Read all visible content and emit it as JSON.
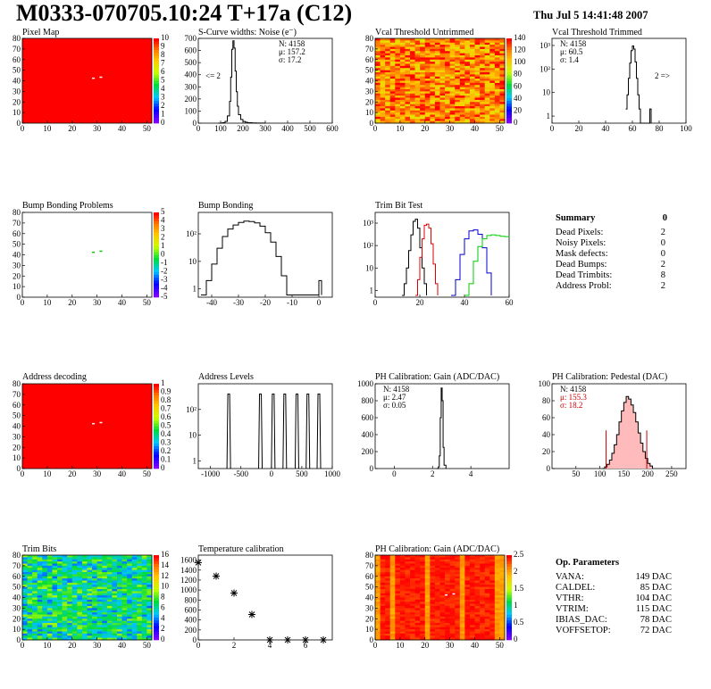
{
  "header": {
    "title": "M0333-070705.10:24 T+17a (C12)",
    "timestamp": "Thu Jul  5 14:41:48 2007"
  },
  "colors": {
    "hot": "#ff0000",
    "grid_warm": "#ff8c00",
    "line_black": "#000000",
    "line_red": "#dd0000",
    "line_blue": "#0000cc",
    "line_green": "#00cc00",
    "pedestal_hist_fill": "#ffbbbb",
    "pedestal_fit": "#cc0000"
  },
  "chart_data": [
    {
      "id": "pixel-map",
      "type": "heatmap",
      "title": "Pixel Map",
      "xlim": [
        0,
        52
      ],
      "ylim": [
        0,
        80
      ],
      "xticks": [
        0,
        10,
        20,
        30,
        40,
        50
      ],
      "yticks": [
        0,
        10,
        20,
        30,
        40,
        50,
        60,
        70,
        80
      ],
      "palette_labels": [
        "0",
        "1",
        "2",
        "3",
        "4",
        "5",
        "6",
        "7",
        "8",
        "9",
        "10"
      ],
      "fill": "uniform",
      "fill_level": 10,
      "hot_spots": [
        {
          "x": 28,
          "y": 43
        },
        {
          "x": 31,
          "y": 44
        }
      ]
    },
    {
      "id": "scurve-noise",
      "type": "line",
      "title": "S-Curve widths: Noise (e⁻)",
      "xlim": [
        0,
        600
      ],
      "ylim": [
        0,
        700
      ],
      "xticks": [
        0,
        100,
        200,
        300,
        400,
        500,
        600
      ],
      "yticks": [
        0,
        100,
        200,
        300,
        400,
        500,
        600,
        700
      ],
      "stats": [
        "N: 4158",
        "μ: 157.2",
        "σ: 17.2"
      ],
      "annotations": [
        "<= 2"
      ],
      "series": [
        {
          "color": "#000000",
          "x": [
            90,
            100,
            110,
            120,
            130,
            140,
            145,
            150,
            155,
            160,
            165,
            170,
            175,
            180,
            190,
            200,
            210,
            220,
            240,
            260,
            280,
            300
          ],
          "values": [
            0,
            2,
            5,
            15,
            60,
            180,
            380,
            610,
            680,
            620,
            430,
            260,
            140,
            70,
            30,
            14,
            8,
            4,
            2,
            1,
            1,
            0
          ]
        }
      ]
    },
    {
      "id": "vcal-untrimmed",
      "type": "heatmap",
      "title": "Vcal Threshold Untrimmed",
      "xlim": [
        0,
        52
      ],
      "ylim": [
        0,
        80
      ],
      "xticks": [
        0,
        10,
        20,
        30,
        40,
        50
      ],
      "yticks": [
        0,
        10,
        20,
        30,
        40,
        50,
        60,
        70,
        80
      ],
      "palette_labels": [
        "0",
        "20",
        "40",
        "60",
        "80",
        "100",
        "120",
        "140"
      ],
      "fill": "noise",
      "fill_level": 85
    },
    {
      "id": "vcal-trimmed",
      "type": "line",
      "title": "Vcal Threshold Trimmed",
      "xlim": [
        0,
        100
      ],
      "ylim": [
        0.5,
        2000
      ],
      "log_y": true,
      "xticks": [
        0,
        20,
        40,
        60,
        80,
        100
      ],
      "yticks": [
        1,
        10,
        100,
        1000
      ],
      "ytick_labels": [
        "1",
        "10",
        "10²",
        "10³"
      ],
      "stats": [
        "N: 4158",
        "μ: 60.5",
        "σ: 1.4"
      ],
      "annotations": [
        "2 =>"
      ],
      "series": [
        {
          "color": "#000000",
          "x": [
            55,
            56,
            57,
            58,
            59,
            60,
            61,
            62,
            63,
            64,
            65,
            66,
            73,
            74
          ],
          "values": [
            2,
            8,
            40,
            180,
            600,
            950,
            700,
            200,
            40,
            8,
            2,
            0.5,
            2,
            0.5
          ]
        }
      ]
    },
    {
      "id": "bump-bonding-problems",
      "type": "heatmap",
      "title": "Bump Bonding Problems",
      "xlim": [
        0,
        52
      ],
      "ylim": [
        0,
        80
      ],
      "xticks": [
        0,
        10,
        20,
        30,
        40,
        50
      ],
      "yticks": [
        0,
        10,
        20,
        30,
        40,
        50,
        60,
        70,
        80
      ],
      "palette_labels": [
        "-5",
        "-4",
        "-3",
        "-2",
        "-1",
        "0",
        "1",
        "2",
        "3",
        "4",
        "5"
      ],
      "fill": "empty",
      "hot_spots": [
        {
          "x": 28,
          "y": 43
        },
        {
          "x": 31,
          "y": 44
        }
      ]
    },
    {
      "id": "bump-bonding",
      "type": "line",
      "title": "Bump Bonding",
      "xlim": [
        -45,
        5
      ],
      "ylim": [
        0.5,
        600
      ],
      "log_y": true,
      "xticks": [
        -40,
        -30,
        -20,
        -10,
        0
      ],
      "yticks": [
        1,
        10,
        100
      ],
      "ytick_labels": [
        "1",
        "10",
        "10²"
      ],
      "series": [
        {
          "color": "#000000",
          "x": [
            -44,
            -42,
            -40,
            -38,
            -36,
            -34,
            -32,
            -30,
            -28,
            -26,
            -24,
            -22,
            -20,
            -18,
            -16,
            -14,
            -12,
            -1,
            0,
            1
          ],
          "values": [
            0.6,
            2,
            8,
            30,
            80,
            150,
            210,
            260,
            290,
            280,
            250,
            190,
            110,
            50,
            15,
            3,
            0.6,
            0.6,
            2,
            0.6
          ]
        }
      ]
    },
    {
      "id": "trim-bit-test",
      "type": "line",
      "title": "Trim Bit Test",
      "xlim": [
        0,
        60
      ],
      "ylim": [
        0.5,
        3000
      ],
      "log_y": true,
      "xticks": [
        0,
        20,
        40,
        60
      ],
      "yticks": [
        1,
        10,
        100,
        1000
      ],
      "ytick_labels": [
        "1",
        "10",
        "10²",
        "10³"
      ],
      "series": [
        {
          "color": "#000000",
          "x": [
            12,
            13,
            14,
            15,
            16,
            17,
            18,
            19,
            20,
            21,
            22,
            23
          ],
          "values": [
            0.6,
            2,
            10,
            60,
            300,
            1200,
            1500,
            600,
            80,
            10,
            2,
            0.6
          ]
        },
        {
          "color": "#dd0000",
          "x": [
            18,
            19,
            20,
            21,
            22,
            23,
            24,
            25,
            26,
            27,
            28
          ],
          "values": [
            0.6,
            3,
            30,
            200,
            800,
            900,
            600,
            120,
            15,
            2,
            0.6
          ]
        },
        {
          "color": "#0000cc",
          "x": [
            34,
            36,
            38,
            40,
            42,
            44,
            46,
            48,
            50,
            52
          ],
          "values": [
            0.6,
            3,
            40,
            200,
            450,
            500,
            320,
            80,
            6,
            0.6
          ]
        },
        {
          "color": "#00cc00",
          "x": [
            40,
            42,
            44,
            46,
            48,
            50,
            52,
            54,
            56,
            58,
            60
          ],
          "values": [
            0.6,
            2,
            20,
            90,
            200,
            280,
            300,
            280,
            260,
            250,
            240
          ]
        }
      ]
    },
    {
      "id": "address-decoding",
      "type": "heatmap",
      "title": "Address decoding",
      "xlim": [
        0,
        52
      ],
      "ylim": [
        0,
        80
      ],
      "xticks": [
        0,
        10,
        20,
        30,
        40,
        50
      ],
      "yticks": [
        0,
        10,
        20,
        30,
        40,
        50,
        60,
        70,
        80
      ],
      "palette_labels": [
        "0",
        "0.1",
        "0.2",
        "0.3",
        "0.4",
        "0.5",
        "0.6",
        "0.7",
        "0.8",
        "0.9",
        "1"
      ],
      "fill": "uniform",
      "fill_level": 1,
      "hot_spots": [
        {
          "x": 28,
          "y": 43
        },
        {
          "x": 31,
          "y": 44
        }
      ]
    },
    {
      "id": "address-levels",
      "type": "line",
      "title": "Address Levels",
      "xlim": [
        -1200,
        1000
      ],
      "ylim": [
        0.5,
        1000
      ],
      "log_y": true,
      "xticks": [
        -1000,
        -500,
        0,
        500,
        1000
      ],
      "yticks": [
        1,
        10,
        100
      ],
      "ytick_labels": [
        "1",
        "10",
        "10²"
      ],
      "peaks": [
        -700,
        -180,
        30,
        220,
        420,
        600,
        780
      ],
      "peak_height": 400,
      "series": [
        {
          "color": "#000000"
        }
      ]
    },
    {
      "id": "ph-gain",
      "type": "line",
      "title": "PH Calibration: Gain (ADC/DAC)",
      "xlim": [
        -1,
        6
      ],
      "ylim": [
        0,
        1000
      ],
      "xticks": [
        0,
        2,
        4
      ],
      "yticks": [
        0,
        200,
        400,
        600,
        800,
        1000
      ],
      "stats": [
        "N: 4158",
        "μ: 2.47",
        "σ: 0.05"
      ],
      "series": [
        {
          "color": "#000000",
          "x": [
            2.2,
            2.3,
            2.35,
            2.4,
            2.45,
            2.5,
            2.55,
            2.6,
            2.7
          ],
          "values": [
            0,
            20,
            150,
            600,
            950,
            800,
            250,
            40,
            0
          ]
        }
      ]
    },
    {
      "id": "ph-pedestal",
      "type": "area",
      "title": "PH Calibration: Pedestal (DAC)",
      "xlim": [
        0,
        280
      ],
      "ylim": [
        0,
        100
      ],
      "xticks": [
        50,
        100,
        150,
        200,
        250
      ],
      "yticks": [
        0,
        20,
        40,
        60,
        80,
        100
      ],
      "stats": [
        "N: 4158",
        "μ: 155.3",
        "σ: 18.2"
      ],
      "fit_lines": [
        113,
        198
      ],
      "series": [
        {
          "color": "#000000",
          "x": [
            105,
            110,
            115,
            120,
            125,
            130,
            135,
            140,
            145,
            150,
            155,
            160,
            165,
            170,
            175,
            180,
            185,
            190,
            195,
            200,
            205,
            210
          ],
          "values": [
            0,
            2,
            5,
            10,
            18,
            28,
            40,
            55,
            68,
            78,
            85,
            82,
            75,
            66,
            55,
            42,
            30,
            20,
            12,
            6,
            3,
            0
          ]
        }
      ]
    },
    {
      "id": "trim-bits",
      "type": "heatmap",
      "title": "Trim Bits",
      "xlim": [
        0,
        52
      ],
      "ylim": [
        0,
        80
      ],
      "xticks": [
        0,
        10,
        20,
        30,
        40,
        50
      ],
      "yticks": [
        0,
        10,
        20,
        30,
        40,
        50,
        60,
        70,
        80
      ],
      "palette_labels": [
        "0",
        "2",
        "4",
        "6",
        "8",
        "10",
        "12",
        "14",
        "16"
      ],
      "fill": "noise",
      "fill_level": 40
    },
    {
      "id": "temperature-calibration",
      "type": "scatter",
      "title": "Temperature calibration",
      "xlim": [
        0,
        7.5
      ],
      "ylim": [
        0,
        1700
      ],
      "xticks": [
        0,
        2,
        4,
        6
      ],
      "yticks": [
        0,
        200,
        400,
        600,
        800,
        1000,
        1200,
        1400,
        1600
      ],
      "series": [
        {
          "color": "#000000",
          "x": [
            0,
            1,
            2,
            3,
            4,
            5,
            6,
            7
          ],
          "values": [
            1550,
            1280,
            940,
            510,
            0,
            0,
            0,
            0
          ]
        }
      ]
    },
    {
      "id": "ph-gain-map",
      "type": "heatmap",
      "title": "PH Calibration: Gain (ADC/DAC)",
      "xlim": [
        0,
        52
      ],
      "ylim": [
        0,
        80
      ],
      "xticks": [
        0,
        10,
        20,
        30,
        40,
        50
      ],
      "yticks": [
        0,
        10,
        20,
        30,
        40,
        50,
        60,
        70,
        80
      ],
      "palette_labels": [
        "0",
        "0.5",
        "1",
        "1.5",
        "2",
        "2.5"
      ],
      "fill": "columns",
      "fill_level": 95,
      "hot_spots": [
        {
          "x": 28,
          "y": 43
        },
        {
          "x": 31,
          "y": 44
        }
      ]
    }
  ],
  "summary": {
    "title": "Summary",
    "total": "0",
    "rows": [
      {
        "label": "Dead Pixels:",
        "value": "2"
      },
      {
        "label": "Noisy Pixels:",
        "value": "0"
      },
      {
        "label": "Mask defects:",
        "value": "0"
      },
      {
        "label": "Dead Bumps:",
        "value": "2"
      },
      {
        "label": "Dead Trimbits:",
        "value": "8"
      },
      {
        "label": "Address Probl:",
        "value": "2"
      }
    ]
  },
  "op_parameters": {
    "title": "Op. Parameters",
    "rows": [
      {
        "label": "VANA:",
        "value": "149 DAC"
      },
      {
        "label": "CALDEL:",
        "value": "85 DAC"
      },
      {
        "label": "VTHR:",
        "value": "104 DAC"
      },
      {
        "label": "VTRIM:",
        "value": "115 DAC"
      },
      {
        "label": "IBIAS_DAC:",
        "value": "78 DAC"
      },
      {
        "label": "VOFFSETOP:",
        "value": "72 DAC"
      }
    ]
  }
}
